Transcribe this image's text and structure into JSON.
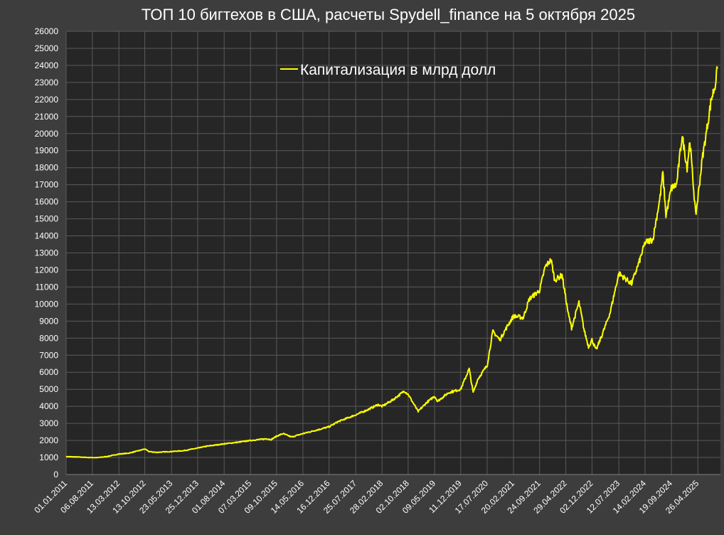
{
  "chart_data": {
    "type": "line",
    "title": "ТОП 10 бигтехов в США, расчеты Spydell_finance на 5 октября 2025",
    "xlabel": "",
    "ylabel": "",
    "ylim": [
      0,
      26000
    ],
    "ytick_step": 1000,
    "grid": true,
    "legend_position": "top-center",
    "colors": {
      "background": "#3d3d3d",
      "plot_background": "#262626",
      "grid": "#5a5a5a",
      "line": "#ffff00",
      "text": "#ffffff"
    },
    "x_range": [
      "2011-01-01",
      "2025-10-05"
    ],
    "x_tick_labels": [
      "01.01.2011",
      "06.08.2011",
      "13.03.2012",
      "13.10.2012",
      "23.05.2013",
      "25.12.2013",
      "01.08.2014",
      "07.03.2015",
      "09.10.2015",
      "14.05.2016",
      "16.12.2016",
      "25.07.2017",
      "28.02.2018",
      "02.10.2018",
      "09.05.2019",
      "11.12.2019",
      "17.07.2020",
      "20.02.2021",
      "24.09.2021",
      "29.04.2022",
      "02.12.2022",
      "12.07.2023",
      "14.02.2024",
      "19.09.2024",
      "26.04.2025"
    ],
    "series": [
      {
        "name": "Капитализация в млрд долл",
        "points": [
          [
            "2011-01-01",
            1050
          ],
          [
            "2011-04-01",
            1030
          ],
          [
            "2011-07-01",
            1000
          ],
          [
            "2011-09-15",
            990
          ],
          [
            "2011-12-01",
            1050
          ],
          [
            "2012-03-13",
            1200
          ],
          [
            "2012-06-01",
            1250
          ],
          [
            "2012-09-20",
            1450
          ],
          [
            "2012-10-13",
            1500
          ],
          [
            "2012-11-15",
            1350
          ],
          [
            "2013-01-15",
            1300
          ],
          [
            "2013-05-23",
            1350
          ],
          [
            "2013-09-01",
            1400
          ],
          [
            "2013-12-25",
            1550
          ],
          [
            "2014-03-01",
            1650
          ],
          [
            "2014-08-01",
            1800
          ],
          [
            "2014-12-01",
            1900
          ],
          [
            "2015-03-07",
            2000
          ],
          [
            "2015-07-20",
            2100
          ],
          [
            "2015-08-25",
            2050
          ],
          [
            "2015-10-09",
            2250
          ],
          [
            "2015-12-01",
            2400
          ],
          [
            "2016-02-11",
            2200
          ],
          [
            "2016-05-14",
            2400
          ],
          [
            "2016-09-01",
            2600
          ],
          [
            "2016-12-16",
            2800
          ],
          [
            "2017-03-01",
            3100
          ],
          [
            "2017-07-25",
            3500
          ],
          [
            "2017-11-01",
            3800
          ],
          [
            "2018-01-26",
            4100
          ],
          [
            "2018-02-28",
            4000
          ],
          [
            "2018-06-01",
            4400
          ],
          [
            "2018-09-01",
            4900
          ],
          [
            "2018-10-02",
            4700
          ],
          [
            "2018-12-24",
            3700
          ],
          [
            "2019-03-01",
            4200
          ],
          [
            "2019-05-09",
            4600
          ],
          [
            "2019-06-03",
            4300
          ],
          [
            "2019-09-01",
            4800
          ],
          [
            "2019-12-11",
            5000
          ],
          [
            "2020-02-19",
            6200
          ],
          [
            "2020-03-23",
            4800
          ],
          [
            "2020-05-01",
            5600
          ],
          [
            "2020-07-17",
            6400
          ],
          [
            "2020-09-02",
            8400
          ],
          [
            "2020-10-30",
            7900
          ],
          [
            "2020-12-31",
            8700
          ],
          [
            "2021-02-20",
            9300
          ],
          [
            "2021-05-12",
            9200
          ],
          [
            "2021-07-01",
            10300
          ],
          [
            "2021-09-24",
            10800
          ],
          [
            "2021-11-10",
            12200
          ],
          [
            "2021-12-28",
            12600
          ],
          [
            "2022-01-27",
            11400
          ],
          [
            "2022-03-29",
            11700
          ],
          [
            "2022-05-20",
            9400
          ],
          [
            "2022-06-16",
            8600
          ],
          [
            "2022-08-16",
            10100
          ],
          [
            "2022-09-30",
            8400
          ],
          [
            "2022-11-03",
            7500
          ],
          [
            "2022-12-02",
            7900
          ],
          [
            "2023-01-05",
            7300
          ],
          [
            "2023-03-01",
            8300
          ],
          [
            "2023-05-01",
            9500
          ],
          [
            "2023-07-12",
            11800
          ],
          [
            "2023-09-01",
            11500
          ],
          [
            "2023-10-26",
            11200
          ],
          [
            "2023-12-29",
            12500
          ],
          [
            "2024-02-14",
            13600
          ],
          [
            "2024-04-19",
            13800
          ],
          [
            "2024-06-18",
            16300
          ],
          [
            "2024-07-10",
            17700
          ],
          [
            "2024-08-05",
            15200
          ],
          [
            "2024-09-19",
            16800
          ],
          [
            "2024-11-01",
            17000
          ],
          [
            "2024-12-17",
            19900
          ],
          [
            "2025-01-27",
            18000
          ],
          [
            "2025-02-19",
            19600
          ],
          [
            "2025-04-08",
            15200
          ],
          [
            "2025-04-26",
            16200
          ],
          [
            "2025-06-01",
            18500
          ],
          [
            "2025-07-15",
            20500
          ],
          [
            "2025-08-15",
            22000
          ],
          [
            "2025-09-15",
            22800
          ],
          [
            "2025-10-05",
            23800
          ]
        ]
      }
    ]
  }
}
